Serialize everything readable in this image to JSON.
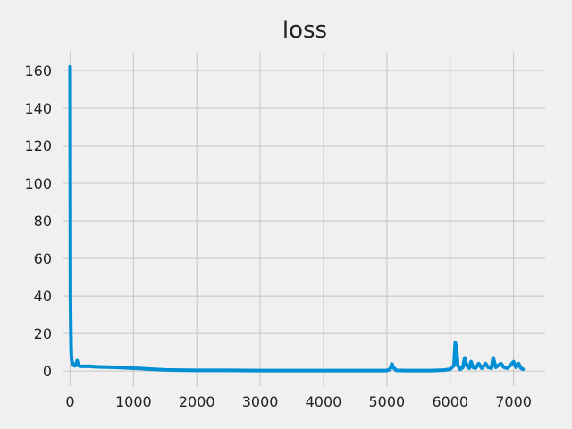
{
  "chart_data": {
    "type": "line",
    "title": "loss",
    "xlabel": "",
    "ylabel": "",
    "xlim": [
      -120,
      7500
    ],
    "ylim": [
      -8,
      170
    ],
    "xticks": [
      0,
      1000,
      2000,
      3000,
      4000,
      5000,
      6000,
      7000
    ],
    "yticks": [
      0,
      20,
      40,
      60,
      80,
      100,
      120,
      140,
      160
    ],
    "grid": true,
    "legend": "none",
    "series": [
      {
        "color": "#008fd5",
        "x": [
          0,
          5,
          10,
          15,
          20,
          25,
          30,
          40,
          50,
          60,
          75,
          90,
          110,
          130,
          150,
          200,
          300,
          400,
          500,
          600,
          700,
          800,
          900,
          1000,
          1100,
          1200,
          1300,
          1400,
          1500,
          1700,
          2000,
          2500,
          3000,
          3500,
          4000,
          4500,
          5000,
          5050,
          5080,
          5100,
          5150,
          5300,
          5500,
          5700,
          5900,
          6000,
          6060,
          6080,
          6100,
          6120,
          6160,
          6200,
          6230,
          6260,
          6300,
          6330,
          6360,
          6400,
          6450,
          6500,
          6560,
          6600,
          6650,
          6680,
          6720,
          6760,
          6800,
          6850,
          6900,
          6950,
          7000,
          7040,
          7080,
          7120,
          7150
        ],
        "values": [
          162,
          40,
          25,
          12,
          8,
          6,
          5,
          4,
          3.5,
          3,
          2.8,
          3.2,
          5.5,
          3,
          2.6,
          2.5,
          2.6,
          2.3,
          2.2,
          2.1,
          2.0,
          1.9,
          1.7,
          1.5,
          1.4,
          1.2,
          1.0,
          0.8,
          0.6,
          0.5,
          0.4,
          0.4,
          0.3,
          0.3,
          0.3,
          0.3,
          0.3,
          1.0,
          3.8,
          2.0,
          0.4,
          0.3,
          0.3,
          0.3,
          0.5,
          1.0,
          3.0,
          15,
          12,
          3,
          1.0,
          2,
          7,
          3,
          1.5,
          5,
          2,
          1.5,
          4,
          1.5,
          4,
          2,
          1.5,
          7,
          2,
          3,
          4,
          2,
          1.5,
          3,
          5,
          2,
          4,
          1.5,
          1.0
        ]
      }
    ]
  }
}
